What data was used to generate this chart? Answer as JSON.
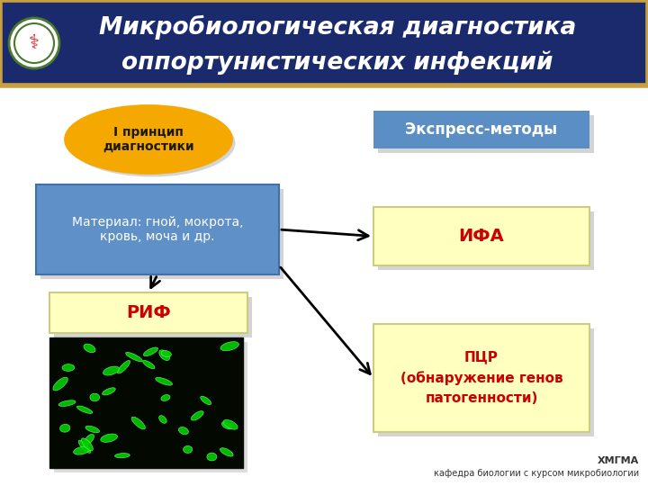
{
  "title_line1": "Микробиологическая диагностика",
  "title_line2": "оппортунистических инфекций",
  "title_bg": "#1a2a6c",
  "title_color": "#ffffff",
  "title_border": "#c8a040",
  "bg_color": "#ffffff",
  "principle_label": "I принцип\nдиагностики",
  "principle_fill": "#f5a800",
  "principle_text_color": "#1a1a00",
  "express_label": "Экспресс-методы",
  "express_fill": "#5b8ec4",
  "express_text_color": "#ffffff",
  "material_label": "Материал: гной, мокрота,\nкровь, моча и др.",
  "material_fill": "#6090c8",
  "material_text_color": "#ffffff",
  "ifa_label": "ИФА",
  "ifa_fill": "#ffffc0",
  "ifa_text_color": "#cc0000",
  "rif_label": "РИФ",
  "rif_fill": "#ffffc0",
  "rif_text_color": "#cc0000",
  "pcr_label": "ПЦР\n(обнаружение генов\nпатогенности)",
  "pcr_fill": "#ffffc0",
  "pcr_text_color": "#cc0000",
  "footer_line1": "ХМГМА",
  "footer_line2": "кафедра биологии с курсом микробиологии",
  "footer_color": "#333333",
  "shadow_color": "#aaaaaa"
}
